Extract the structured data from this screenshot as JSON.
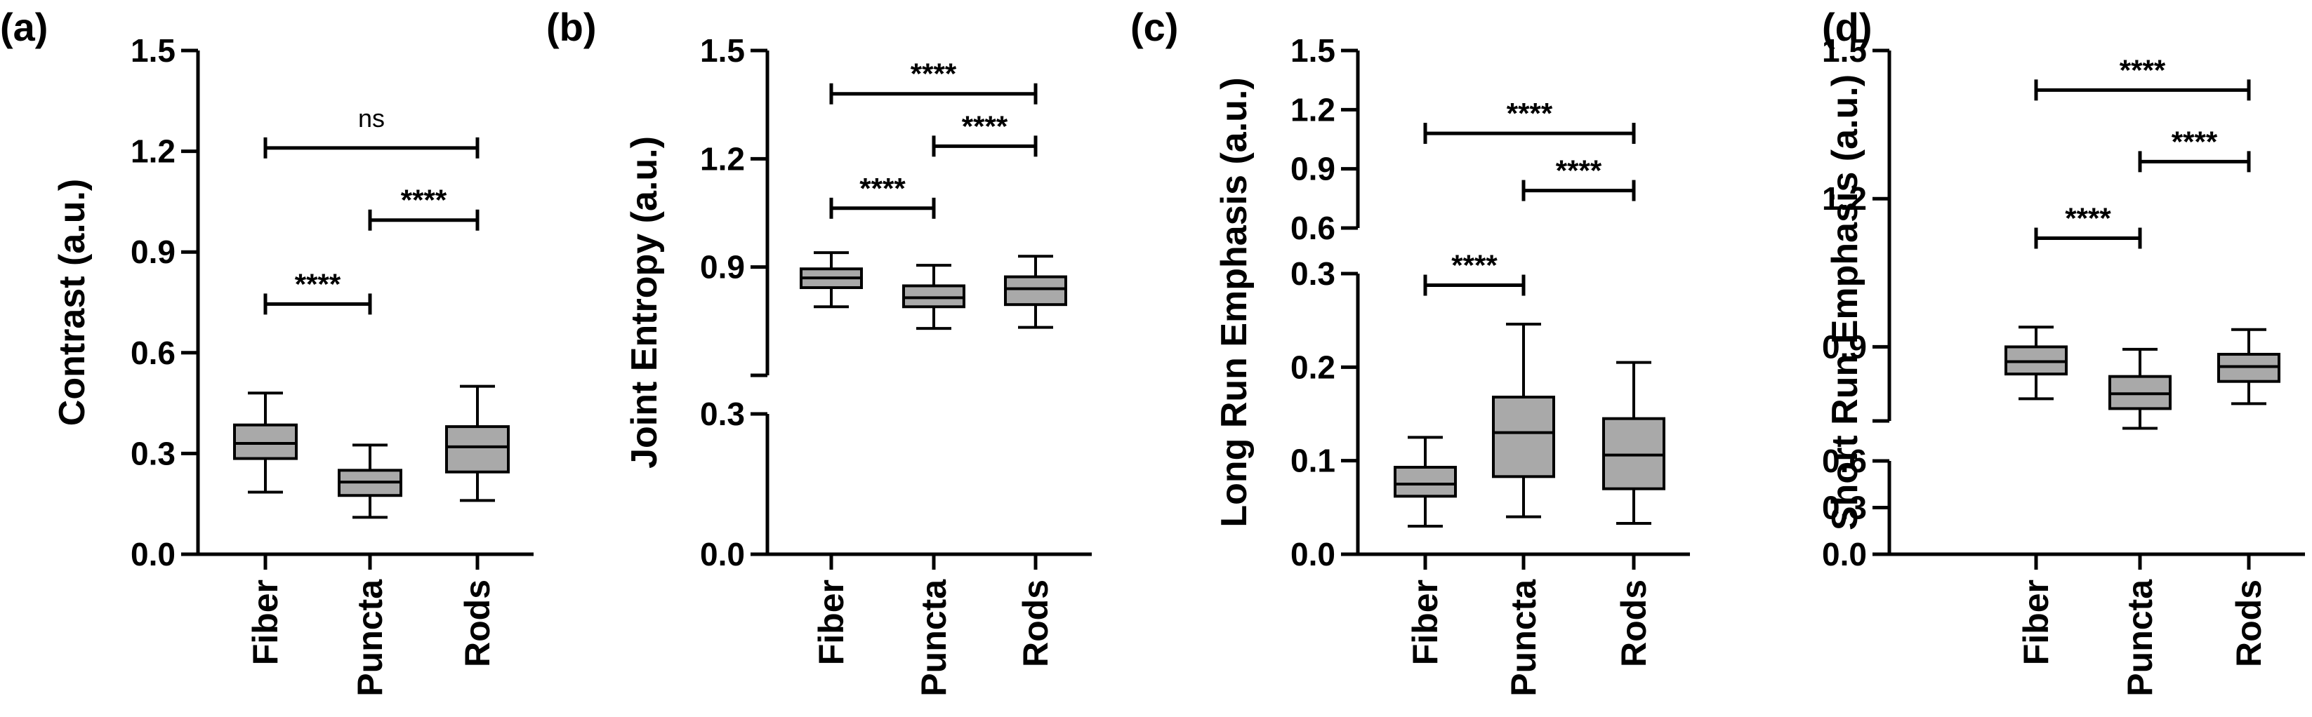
{
  "chart_data": [
    {
      "type": "box",
      "panel": "(a)",
      "ylabel": "Contrast (a.u.)",
      "categories": [
        "Fiber",
        "Puncta",
        "Rods"
      ],
      "yticks": [
        "0.0",
        "0.3",
        "0.6",
        "0.9",
        "1.2",
        "1.5"
      ],
      "ylim": [
        0,
        1.5
      ],
      "broken_axis": false,
      "boxes": [
        {
          "category": "Fiber",
          "min": 0.185,
          "q1": 0.285,
          "median": 0.33,
          "q3": 0.385,
          "max": 0.48
        },
        {
          "category": "Puncta",
          "min": 0.11,
          "q1": 0.175,
          "median": 0.215,
          "q3": 0.25,
          "max": 0.325
        },
        {
          "category": "Rods",
          "min": 0.16,
          "q1": 0.245,
          "median": 0.32,
          "q3": 0.38,
          "max": 0.5
        }
      ],
      "comparisons": [
        {
          "from": "Fiber",
          "to": "Puncta",
          "y": 0.745,
          "label": "****"
        },
        {
          "from": "Puncta",
          "to": "Rods",
          "y": 0.995,
          "label": "****"
        },
        {
          "from": "Fiber",
          "to": "Rods",
          "y": 1.21,
          "label": "ns"
        }
      ]
    },
    {
      "type": "box",
      "panel": "(b)",
      "ylabel": "Joint Entropy (a.u.)",
      "categories": [
        "Fiber",
        "Puncta",
        "Rods"
      ],
      "yticks": [
        "0.0",
        "0.3",
        "0.9",
        "1.2",
        "1.5"
      ],
      "ylim": [
        0,
        1.5
      ],
      "broken_axis": true,
      "axis_break": [
        0.3,
        0.6
      ],
      "boxes": [
        {
          "category": "Fiber",
          "min": 0.79,
          "q1": 0.843,
          "median": 0.87,
          "q3": 0.895,
          "max": 0.94
        },
        {
          "category": "Puncta",
          "min": 0.73,
          "q1": 0.79,
          "median": 0.815,
          "q3": 0.848,
          "max": 0.905
        },
        {
          "category": "Rods",
          "min": 0.733,
          "q1": 0.796,
          "median": 0.84,
          "q3": 0.873,
          "max": 0.93
        }
      ],
      "comparisons": [
        {
          "from": "Fiber",
          "to": "Puncta",
          "y": 1.063,
          "label": "****"
        },
        {
          "from": "Puncta",
          "to": "Rods",
          "y": 1.235,
          "label": "****"
        },
        {
          "from": "Fiber",
          "to": "Rods",
          "y": 1.38,
          "label": "****"
        }
      ]
    },
    {
      "type": "box",
      "panel": "(c)",
      "ylabel": "Long Run Emphasis (a.u.)",
      "categories": [
        "Fiber",
        "Puncta",
        "Rods"
      ],
      "yticks": [
        "0.0",
        "0.1",
        "0.2",
        "0.3",
        "0.6",
        "0.9",
        "1.2",
        "1.5"
      ],
      "ylim": [
        0,
        1.5
      ],
      "broken_axis": true,
      "axis_break": [
        0.3,
        0.6
      ],
      "boxes": [
        {
          "category": "Fiber",
          "min": 0.03,
          "q1": 0.062,
          "median": 0.075,
          "q3": 0.093,
          "max": 0.125
        },
        {
          "category": "Puncta",
          "min": 0.04,
          "q1": 0.083,
          "median": 0.13,
          "q3": 0.168,
          "max": 0.246
        },
        {
          "category": "Rods",
          "min": 0.033,
          "q1": 0.07,
          "median": 0.106,
          "q3": 0.145,
          "max": 0.205
        }
      ],
      "comparisons": [
        {
          "from": "Fiber",
          "to": "Puncta",
          "y": 0.31,
          "label": "****"
        },
        {
          "from": "Puncta",
          "to": "Rods",
          "y": 0.79,
          "label": "****"
        },
        {
          "from": "Fiber",
          "to": "Rods",
          "y": 1.08,
          "label": "****"
        }
      ]
    },
    {
      "type": "box",
      "panel": "(d)",
      "ylabel": "Short Run Emphasis (a.u.)",
      "categories": [
        "Fiber",
        "Puncta",
        "Rods"
      ],
      "yticks": [
        "0.0",
        "0.3",
        "0.6",
        "0.9",
        "1.2",
        "1.5"
      ],
      "ylim": [
        0,
        1.5
      ],
      "broken_axis": true,
      "axis_break": [
        0.6,
        0.75
      ],
      "boxes": [
        {
          "category": "Fiber",
          "min": 0.795,
          "q1": 0.845,
          "median": 0.87,
          "q3": 0.9,
          "max": 0.94
        },
        {
          "category": "Puncta",
          "min": 0.735,
          "q1": 0.775,
          "median": 0.805,
          "q3": 0.84,
          "max": 0.895
        },
        {
          "category": "Rods",
          "min": 0.785,
          "q1": 0.83,
          "median": 0.86,
          "q3": 0.885,
          "max": 0.935
        }
      ],
      "comparisons": [
        {
          "from": "Fiber",
          "to": "Puncta",
          "y": 1.12,
          "label": "****"
        },
        {
          "from": "Puncta",
          "to": "Rods",
          "y": 1.275,
          "label": "****"
        },
        {
          "from": "Fiber",
          "to": "Rods",
          "y": 1.42,
          "label": "****"
        }
      ]
    }
  ],
  "style": {
    "box_fill": "#a9a9a9",
    "line_color": "#000000",
    "background": "#ffffff"
  }
}
